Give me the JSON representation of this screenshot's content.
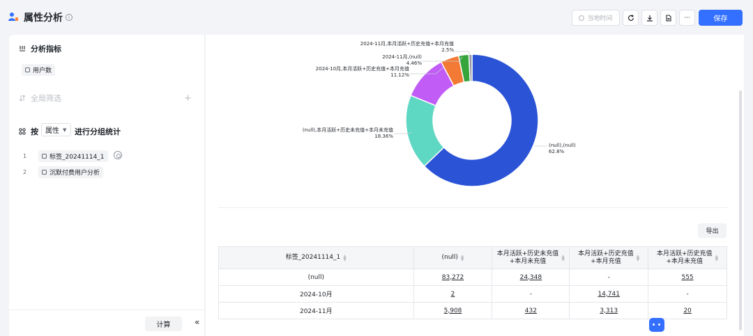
{
  "header": {
    "title": "属性分析",
    "time_label": "当地时间",
    "save_label": "保存",
    "more_label": "···"
  },
  "left": {
    "metrics_title": "分析指标",
    "metric_tag": "用户数",
    "filter_title": "全局筛选",
    "group_prefix": "按",
    "group_select": "属性",
    "group_suffix": "进行分组统计",
    "groups": [
      {
        "index": "1",
        "label": "标签_20241114_1"
      },
      {
        "index": "2",
        "label": "沉默付费用户分析"
      }
    ],
    "calc_label": "计算"
  },
  "chart_data": {
    "type": "pie",
    "donut": true,
    "slices": [
      {
        "label": "(null),(null)",
        "percent": "62.8%",
        "value": 62.8,
        "color": "#2a53d6"
      },
      {
        "label": "(null),本月活跃+历史未充值+本月未充值",
        "percent": "18.36%",
        "value": 18.36,
        "color": "#5ed7c3"
      },
      {
        "label": "2024-10月,本月活跃+历史充值+本月充值",
        "percent": "11.12%",
        "value": 11.12,
        "color": "#c15cf7"
      },
      {
        "label": "2024-11月,(null)",
        "percent": "4.46%",
        "value": 4.46,
        "color": "#f37a34"
      },
      {
        "label": "2024-11月,本月活跃+历史充值+本月充值",
        "percent": "2.5%",
        "value": 2.5,
        "color": "#35a43b"
      },
      {
        "label": "",
        "percent": "",
        "value": 0.76,
        "color": "#8f959e"
      }
    ]
  },
  "table": {
    "export_label": "导出",
    "headers": [
      {
        "line1": "标签_20241114_1",
        "line2": ""
      },
      {
        "line1": "(null)",
        "line2": ""
      },
      {
        "line1": "本月活跃+历史未充值",
        "line2": "+本月未充值"
      },
      {
        "line1": "本月活跃+历史充值",
        "line2": "+本月充值"
      },
      {
        "line1": "本月活跃+历史充值",
        "line2": "+本月未充值"
      }
    ],
    "rows": [
      {
        "label": "(null)",
        "cells": [
          "83,272",
          "24,348",
          "-",
          "555"
        ]
      },
      {
        "label": "2024-10月",
        "cells": [
          "2",
          "-",
          "14,741",
          "-"
        ]
      },
      {
        "label": "2024-11月",
        "cells": [
          "5,908",
          "432",
          "3,313",
          "20"
        ]
      }
    ]
  }
}
